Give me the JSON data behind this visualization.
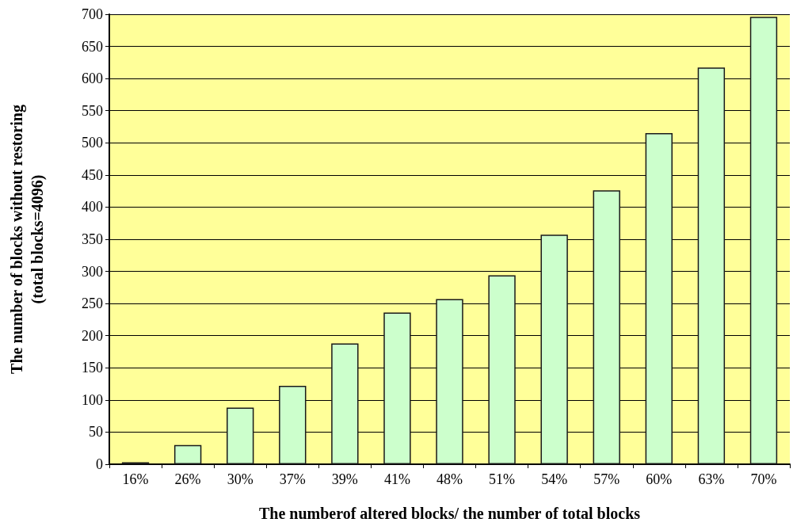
{
  "chart_data": {
    "type": "bar",
    "xlabel": "The numberof altered blocks/ the number of total blocks",
    "ylabel": "The number of blocks without restoring\n(total blocks=4096)",
    "categories": [
      "16%",
      "26%",
      "30%",
      "37%",
      "39%",
      "41%",
      "48%",
      "51%",
      "54%",
      "57%",
      "60%",
      "63%",
      "70%"
    ],
    "values": [
      3,
      30,
      88,
      122,
      188,
      236,
      257,
      294,
      357,
      426,
      515,
      617,
      696
    ],
    "color": "#ccffcc",
    "ylim": [
      0,
      700
    ],
    "yticks": [
      0,
      50,
      100,
      150,
      200,
      250,
      300,
      350,
      400,
      450,
      500,
      550,
      600,
      650,
      700
    ],
    "grid": "y"
  }
}
